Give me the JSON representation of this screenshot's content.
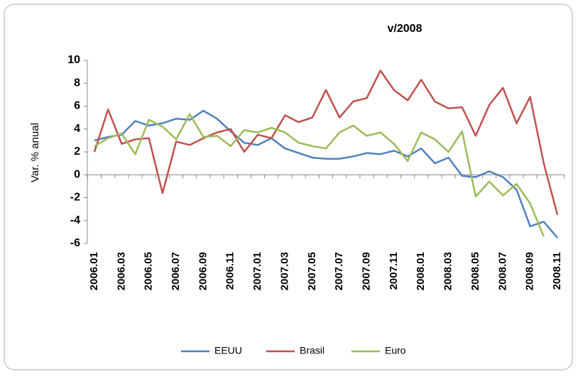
{
  "chart_data": {
    "type": "line",
    "title": "v/2008",
    "y_label": "Var. % anual",
    "categories": [
      "2006.01",
      null,
      "2006.03",
      null,
      "2006.05",
      null,
      "2006.07",
      null,
      "2006.09",
      null,
      "2006.11",
      null,
      "2007.01",
      null,
      "2007.03",
      null,
      "2007.05",
      null,
      "2007.07",
      null,
      "2007.09",
      null,
      "2007.11",
      null,
      "2008.01",
      null,
      "2008.03",
      null,
      "2008.05",
      null,
      "2008.07",
      null,
      "2008.09",
      null,
      "2008.11"
    ],
    "series": [
      {
        "name": "EEUU",
        "color": "#4f81bd",
        "values": [
          3.0,
          3.3,
          3.5,
          4.7,
          4.3,
          4.5,
          4.9,
          4.8,
          5.6,
          4.9,
          3.8,
          2.8,
          2.6,
          3.2,
          2.3,
          1.9,
          1.5,
          1.4,
          1.4,
          1.6,
          1.9,
          1.8,
          2.1,
          1.6,
          2.3,
          1.0,
          1.5,
          -0.1,
          -0.2,
          0.3,
          -0.2,
          -1.3,
          -4.5,
          -4.1,
          -5.5
        ]
      },
      {
        "name": "Brasil",
        "color": "#c0504d",
        "values": [
          2.0,
          5.7,
          2.7,
          3.1,
          3.2,
          -1.6,
          2.9,
          2.6,
          3.2,
          3.7,
          4.0,
          2.0,
          3.5,
          3.2,
          5.2,
          4.6,
          5.0,
          7.4,
          5.0,
          6.4,
          6.7,
          9.1,
          7.4,
          6.5,
          8.3,
          6.4,
          5.8,
          5.9,
          3.4,
          6.1,
          7.6,
          4.5,
          6.8,
          1.0,
          -3.5
        ]
      },
      {
        "name": "Euro",
        "color": "#9bbb59",
        "values": [
          2.5,
          3.2,
          3.6,
          1.8,
          4.8,
          4.2,
          3.1,
          5.3,
          3.3,
          3.4,
          2.5,
          3.9,
          3.7,
          4.1,
          3.7,
          2.8,
          2.5,
          2.3,
          3.7,
          4.3,
          3.4,
          3.7,
          2.7,
          1.2,
          3.7,
          3.1,
          2.0,
          3.8,
          -1.9,
          -0.6,
          -1.8,
          -0.8,
          -2.5,
          -5.4,
          null
        ]
      }
    ],
    "ylim": [
      -6,
      10
    ],
    "yticks": [
      -6,
      -4,
      -2,
      0,
      2,
      4,
      6,
      8,
      10
    ],
    "grid": false,
    "legend": "bottom"
  }
}
